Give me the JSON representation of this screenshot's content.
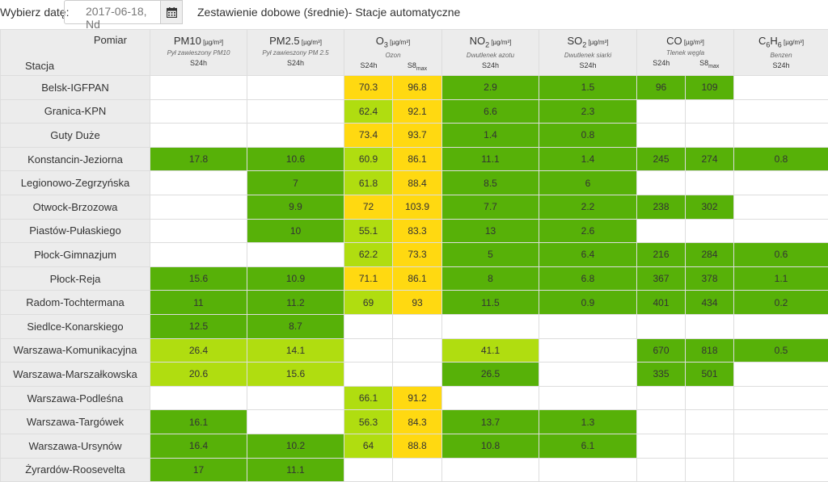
{
  "header": {
    "date_label": "Wybierz datę:",
    "date_value": "2017-06-18, Nd",
    "title": "Zestawienie dobowe (średnie)- Stacje automatyczne"
  },
  "table": {
    "corner_measurement": "Pomiar",
    "corner_station": "Stacja",
    "params": [
      {
        "name": "PM10",
        "sub": "",
        "unit": "[µg/m³]",
        "desc": "Pył zawieszony PM10",
        "cols": [
          "S24h"
        ]
      },
      {
        "name": "PM2.5",
        "sub": "",
        "unit": "[µg/m³]",
        "desc": "Pył zawieszony PM 2.5",
        "cols": [
          "S24h"
        ]
      },
      {
        "name": "O",
        "sub": "3",
        "unit": "[µg/m³]",
        "desc": "Ozon",
        "cols": [
          "S24h",
          "S8max"
        ]
      },
      {
        "name": "NO",
        "sub": "2",
        "unit": "[µg/m³]",
        "desc": "Dwutlenek azotu",
        "cols": [
          "S24h"
        ]
      },
      {
        "name": "SO",
        "sub": "2",
        "unit": "[µg/m³]",
        "desc": "Dwutlenek siarki",
        "cols": [
          "S24h"
        ]
      },
      {
        "name": "CO",
        "sub": "",
        "unit": "[µg/m³]",
        "desc": "Tlenek węgla",
        "cols": [
          "S24h",
          "S8max"
        ]
      },
      {
        "name": "C6H6",
        "sub": "",
        "unit": "[µg/m³]",
        "desc": "Benzen",
        "cols": [
          "S24h"
        ]
      }
    ],
    "rows": [
      {
        "station": "Belsk-IGFPAN",
        "cells": [
          [
            "",
            ""
          ],
          [
            "",
            ""
          ],
          [
            "70.3",
            "y"
          ],
          [
            "96.8",
            "y"
          ],
          [
            "2.9",
            "g"
          ],
          [
            "1.5",
            "g"
          ],
          [
            "96",
            "g"
          ],
          [
            "109",
            "g"
          ],
          [
            "",
            ""
          ]
        ]
      },
      {
        "station": "Granica-KPN",
        "cells": [
          [
            "",
            ""
          ],
          [
            "",
            ""
          ],
          [
            "62.4",
            "lg"
          ],
          [
            "92.1",
            "y"
          ],
          [
            "6.6",
            "g"
          ],
          [
            "2.3",
            "g"
          ],
          [
            "",
            ""
          ],
          [
            "",
            ""
          ],
          [
            "",
            ""
          ]
        ]
      },
      {
        "station": "Guty Duże",
        "cells": [
          [
            "",
            ""
          ],
          [
            "",
            ""
          ],
          [
            "73.4",
            "y"
          ],
          [
            "93.7",
            "y"
          ],
          [
            "1.4",
            "g"
          ],
          [
            "0.8",
            "g"
          ],
          [
            "",
            ""
          ],
          [
            "",
            ""
          ],
          [
            "",
            ""
          ]
        ]
      },
      {
        "station": "Konstancin-Jeziorna",
        "cells": [
          [
            "17.8",
            "g"
          ],
          [
            "10.6",
            "g"
          ],
          [
            "60.9",
            "lg"
          ],
          [
            "86.1",
            "y"
          ],
          [
            "11.1",
            "g"
          ],
          [
            "1.4",
            "g"
          ],
          [
            "245",
            "g"
          ],
          [
            "274",
            "g"
          ],
          [
            "0.8",
            "g"
          ]
        ]
      },
      {
        "station": "Legionowo-Zegrzyńska",
        "cells": [
          [
            "",
            ""
          ],
          [
            "7",
            "g"
          ],
          [
            "61.8",
            "lg"
          ],
          [
            "88.4",
            "y"
          ],
          [
            "8.5",
            "g"
          ],
          [
            "6",
            "g"
          ],
          [
            "",
            ""
          ],
          [
            "",
            ""
          ],
          [
            "",
            ""
          ]
        ]
      },
      {
        "station": "Otwock-Brzozowa",
        "cells": [
          [
            "",
            ""
          ],
          [
            "9.9",
            "g"
          ],
          [
            "72",
            "y"
          ],
          [
            "103.9",
            "y"
          ],
          [
            "7.7",
            "g"
          ],
          [
            "2.2",
            "g"
          ],
          [
            "238",
            "g"
          ],
          [
            "302",
            "g"
          ],
          [
            "",
            ""
          ]
        ]
      },
      {
        "station": "Piastów-Pułaskiego",
        "cells": [
          [
            "",
            ""
          ],
          [
            "10",
            "g"
          ],
          [
            "55.1",
            "lg"
          ],
          [
            "83.3",
            "y"
          ],
          [
            "13",
            "g"
          ],
          [
            "2.6",
            "g"
          ],
          [
            "",
            ""
          ],
          [
            "",
            ""
          ],
          [
            "",
            ""
          ]
        ]
      },
      {
        "station": "Płock-Gimnazjum",
        "cells": [
          [
            "",
            ""
          ],
          [
            "",
            ""
          ],
          [
            "62.2",
            "lg"
          ],
          [
            "73.3",
            "y"
          ],
          [
            "5",
            "g"
          ],
          [
            "6.4",
            "g"
          ],
          [
            "216",
            "g"
          ],
          [
            "284",
            "g"
          ],
          [
            "0.6",
            "g"
          ]
        ]
      },
      {
        "station": "Płock-Reja",
        "cells": [
          [
            "15.6",
            "g"
          ],
          [
            "10.9",
            "g"
          ],
          [
            "71.1",
            "y"
          ],
          [
            "86.1",
            "y"
          ],
          [
            "8",
            "g"
          ],
          [
            "6.8",
            "g"
          ],
          [
            "367",
            "g"
          ],
          [
            "378",
            "g"
          ],
          [
            "1.1",
            "g"
          ]
        ]
      },
      {
        "station": "Radom-Tochtermana",
        "cells": [
          [
            "11",
            "g"
          ],
          [
            "11.2",
            "g"
          ],
          [
            "69",
            "lg"
          ],
          [
            "93",
            "y"
          ],
          [
            "11.5",
            "g"
          ],
          [
            "0.9",
            "g"
          ],
          [
            "401",
            "g"
          ],
          [
            "434",
            "g"
          ],
          [
            "0.2",
            "g"
          ]
        ]
      },
      {
        "station": "Siedlce-Konarskiego",
        "cells": [
          [
            "12.5",
            "g"
          ],
          [
            "8.7",
            "g"
          ],
          [
            "",
            ""
          ],
          [
            "",
            ""
          ],
          [
            "",
            ""
          ],
          [
            "",
            ""
          ],
          [
            "",
            ""
          ],
          [
            "",
            ""
          ],
          [
            "",
            ""
          ]
        ]
      },
      {
        "station": "Warszawa-Komunikacyjna",
        "cells": [
          [
            "26.4",
            "lg"
          ],
          [
            "14.1",
            "lg"
          ],
          [
            "",
            ""
          ],
          [
            "",
            ""
          ],
          [
            "41.1",
            "lg"
          ],
          [
            "",
            ""
          ],
          [
            "670",
            "g"
          ],
          [
            "818",
            "g"
          ],
          [
            "0.5",
            "g"
          ]
        ]
      },
      {
        "station": "Warszawa-Marszałkowska",
        "cells": [
          [
            "20.6",
            "lg"
          ],
          [
            "15.6",
            "lg"
          ],
          [
            "",
            ""
          ],
          [
            "",
            ""
          ],
          [
            "26.5",
            "g"
          ],
          [
            "",
            ""
          ],
          [
            "335",
            "g"
          ],
          [
            "501",
            "g"
          ],
          [
            "",
            ""
          ]
        ]
      },
      {
        "station": "Warszawa-Podleśna",
        "cells": [
          [
            "",
            ""
          ],
          [
            "",
            ""
          ],
          [
            "66.1",
            "lg"
          ],
          [
            "91.2",
            "y"
          ],
          [
            "",
            ""
          ],
          [
            "",
            ""
          ],
          [
            "",
            ""
          ],
          [
            "",
            ""
          ],
          [
            "",
            ""
          ]
        ]
      },
      {
        "station": "Warszawa-Targówek",
        "cells": [
          [
            "16.1",
            "g"
          ],
          [
            "",
            ""
          ],
          [
            "56.3",
            "lg"
          ],
          [
            "84.3",
            "y"
          ],
          [
            "13.7",
            "g"
          ],
          [
            "1.3",
            "g"
          ],
          [
            "",
            ""
          ],
          [
            "",
            ""
          ],
          [
            "",
            ""
          ]
        ]
      },
      {
        "station": "Warszawa-Ursynów",
        "cells": [
          [
            "16.4",
            "g"
          ],
          [
            "10.2",
            "g"
          ],
          [
            "64",
            "lg"
          ],
          [
            "88.8",
            "y"
          ],
          [
            "10.8",
            "g"
          ],
          [
            "6.1",
            "g"
          ],
          [
            "",
            ""
          ],
          [
            "",
            ""
          ],
          [
            "",
            ""
          ]
        ]
      },
      {
        "station": "Żyrardów-Roosevelta",
        "cells": [
          [
            "17",
            "g"
          ],
          [
            "11.1",
            "g"
          ],
          [
            "",
            ""
          ],
          [
            "",
            ""
          ],
          [
            "",
            ""
          ],
          [
            "",
            ""
          ],
          [
            "",
            ""
          ],
          [
            "",
            ""
          ],
          [
            "",
            ""
          ]
        ]
      }
    ]
  },
  "colors": {
    "green": "#57b108",
    "light_green": "#b0dd10",
    "yellow": "#ffd911"
  },
  "icons": {
    "calendar": "calendar-icon"
  }
}
